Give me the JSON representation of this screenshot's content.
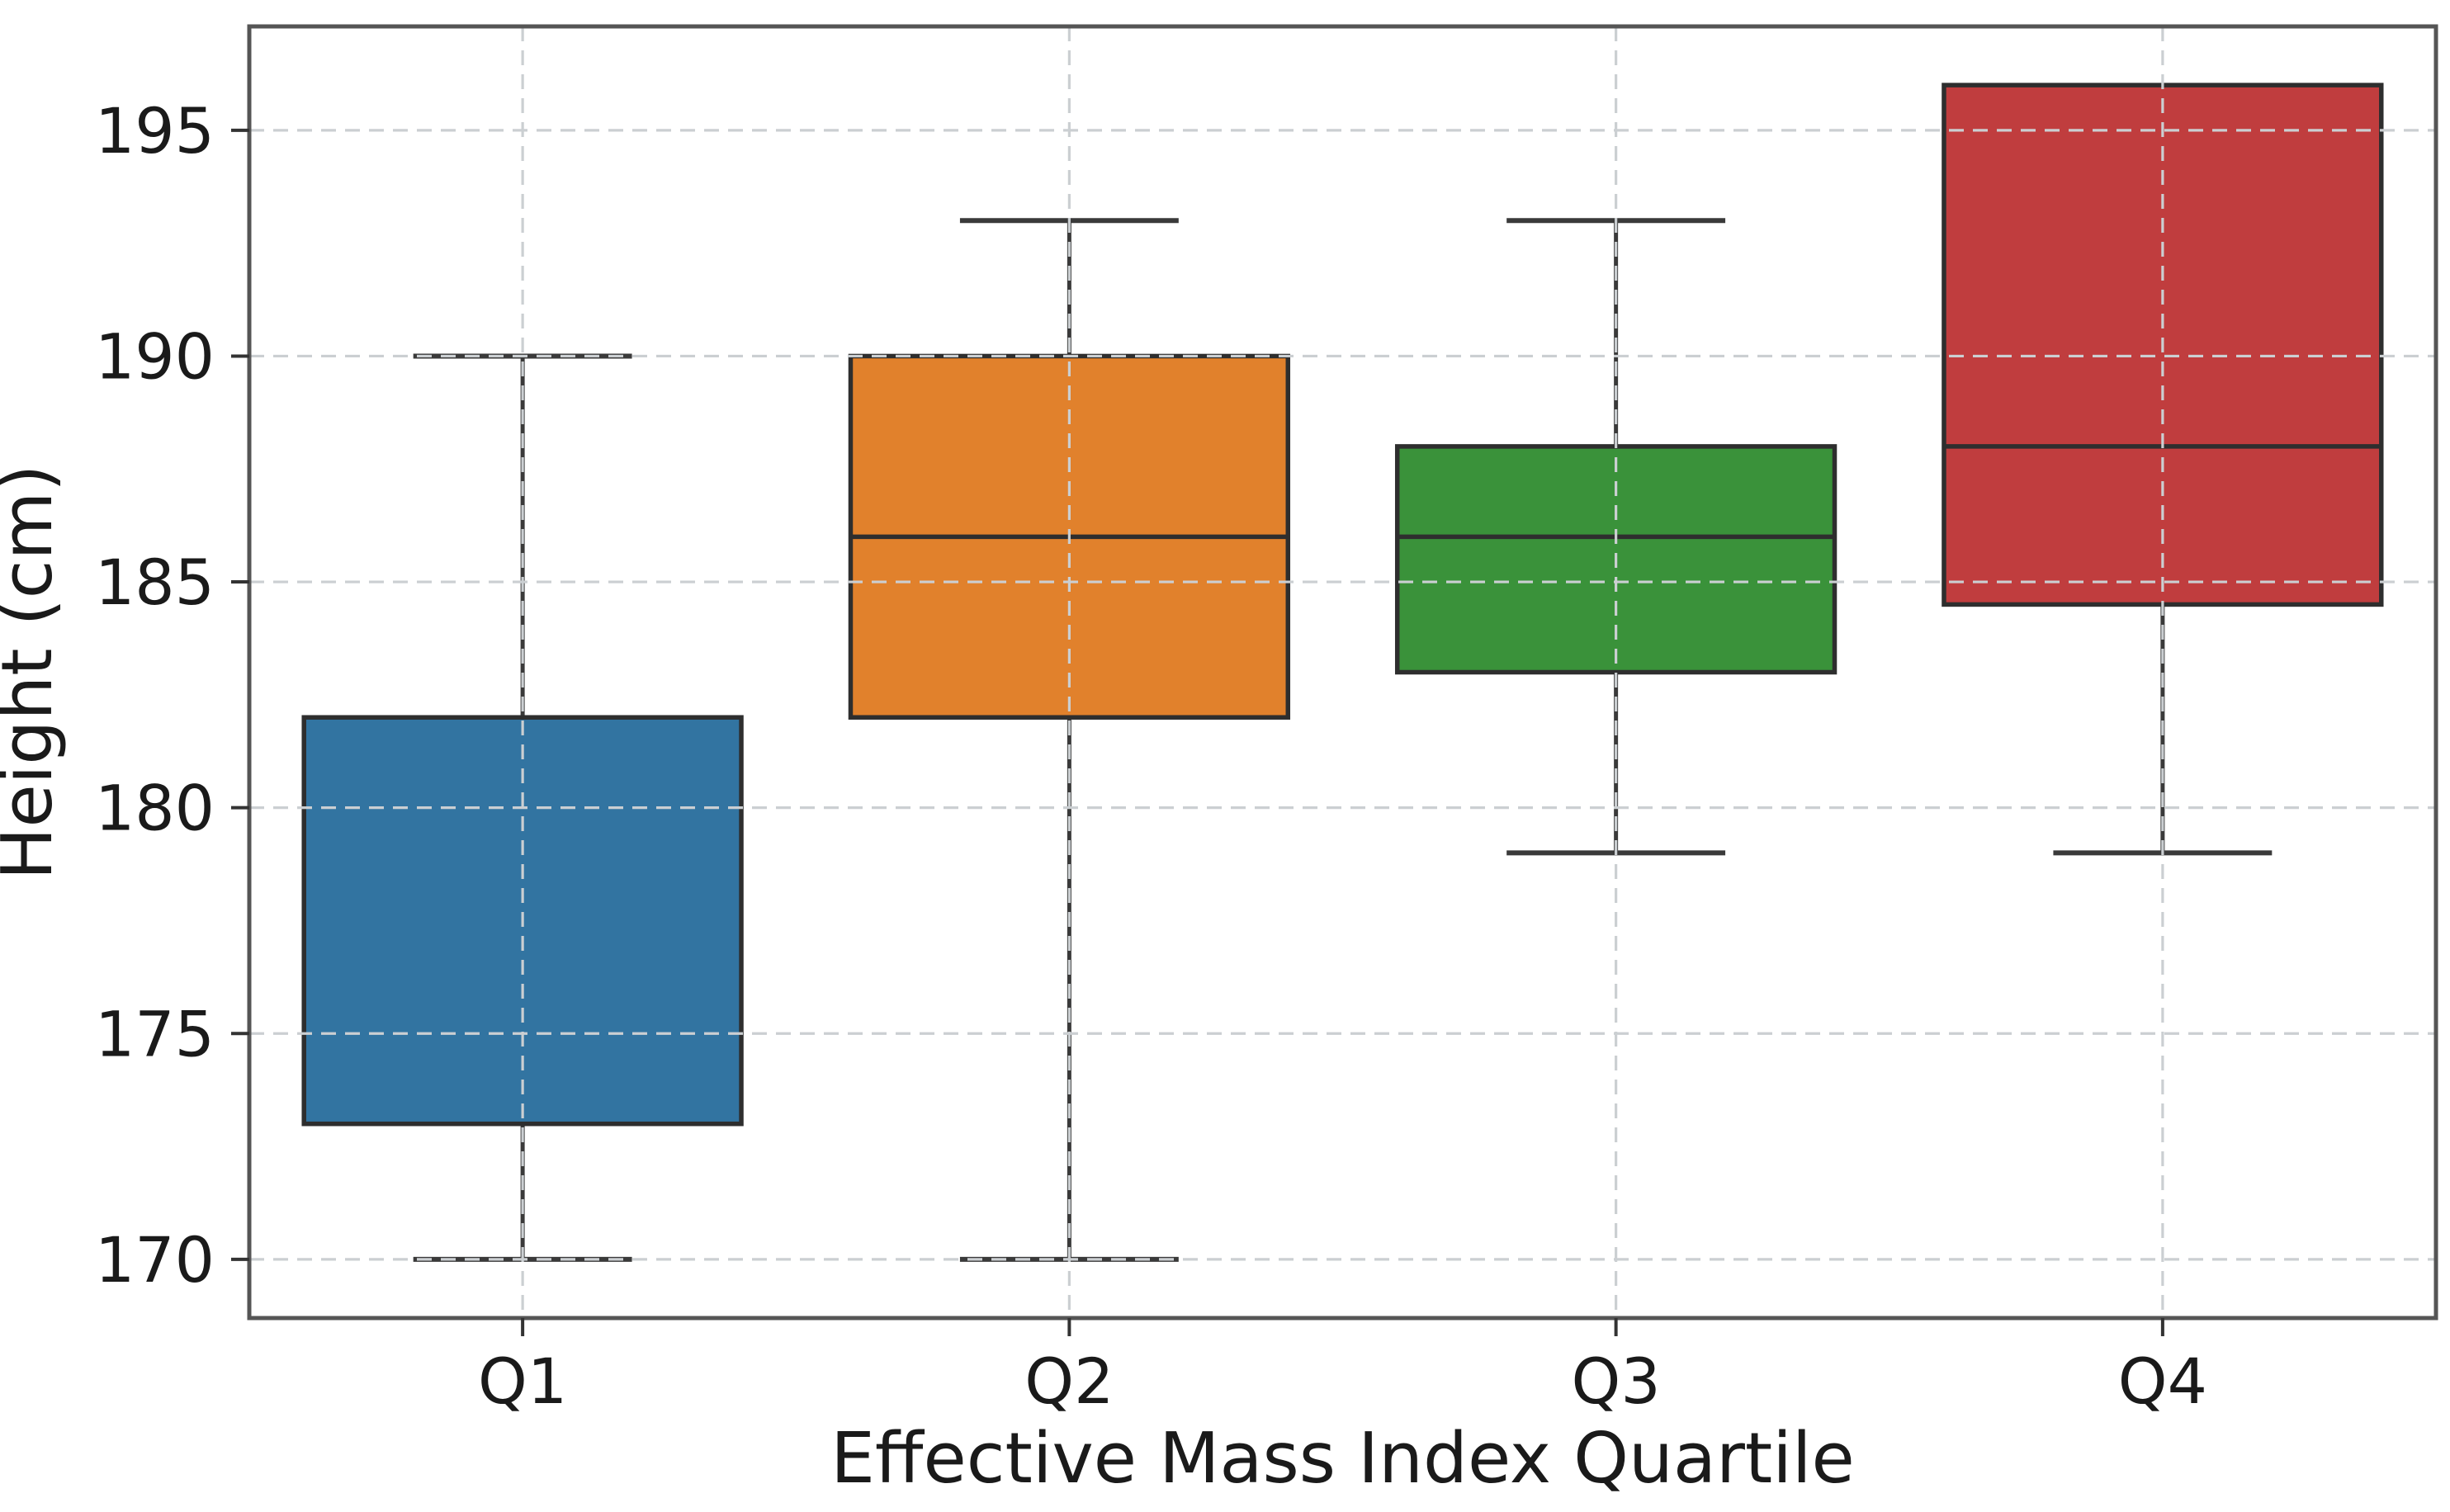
{
  "chart_data": {
    "type": "box",
    "title": "",
    "xlabel": "Effective Mass Index Quartile",
    "ylabel": "Height (cm)",
    "categories": [
      "Q1",
      "Q2",
      "Q3",
      "Q4"
    ],
    "series": [
      {
        "category": "Q1",
        "whisker_low": 170,
        "q1": 173,
        "median": null,
        "q3": 182,
        "whisker_high": 190,
        "fill_color": "#3274A1"
      },
      {
        "category": "Q2",
        "whisker_low": 170,
        "q1": 182,
        "median": 186,
        "q3": 190,
        "whisker_high": 193,
        "fill_color": "#E1812C"
      },
      {
        "category": "Q3",
        "whisker_low": 179,
        "q1": 183,
        "median": 186,
        "q3": 188,
        "whisker_high": 193,
        "fill_color": "#3A923A"
      },
      {
        "category": "Q4",
        "whisker_low": 179,
        "q1": 184.5,
        "median": 188,
        "q3": 196,
        "whisker_high": 196,
        "fill_color": "#C03D3E"
      }
    ],
    "yticks": [
      170,
      175,
      180,
      185,
      190,
      195
    ],
    "ylim": [
      168.7,
      197.3
    ],
    "legend": false,
    "outliers": [],
    "grid": {
      "show": true,
      "line_style": "dashed",
      "color": "#cbcfd2",
      "on_top_of_boxes": true,
      "horizontal_at": [
        170,
        175,
        180,
        185,
        190,
        195
      ],
      "vertical_at_categories": true
    },
    "style": {
      "box_edge_color": "#2e2e2e",
      "whisker_color": "#3a3a3a",
      "spine_color": "#555555",
      "tick_color": "#333333",
      "text_color": "#1a1a1a",
      "background_color": "#ffffff",
      "box_width_frac": 0.8,
      "cap_width_frac": 0.4
    }
  }
}
